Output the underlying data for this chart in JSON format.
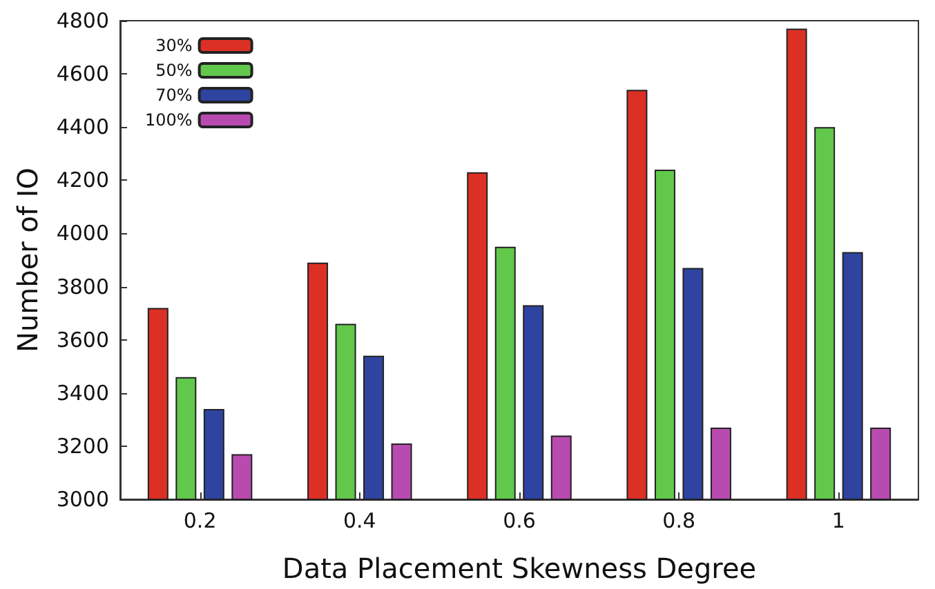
{
  "chart_data": {
    "type": "bar",
    "xlabel": "Data Placement Skewness Degree",
    "ylabel": "Number of IO",
    "categories": [
      "0.2",
      "0.4",
      "0.6",
      "0.8",
      "1"
    ],
    "series": [
      {
        "name": "30%",
        "color": "#dd3024",
        "values": [
          3720,
          3890,
          4230,
          4540,
          4770
        ]
      },
      {
        "name": "50%",
        "color": "#62c84c",
        "values": [
          3460,
          3660,
          3950,
          4240,
          4400
        ]
      },
      {
        "name": "70%",
        "color": "#2e44a0",
        "values": [
          3340,
          3540,
          3730,
          3870,
          3930
        ]
      },
      {
        "name": "100%",
        "color": "#b84bb0",
        "values": [
          3170,
          3210,
          3240,
          3270,
          3270
        ]
      }
    ],
    "ylim": [
      3000,
      4800
    ],
    "yticks": [
      3000,
      3200,
      3400,
      3600,
      3800,
      4000,
      4200,
      4400,
      4600,
      4800
    ],
    "grid": false,
    "legend": "top left"
  }
}
